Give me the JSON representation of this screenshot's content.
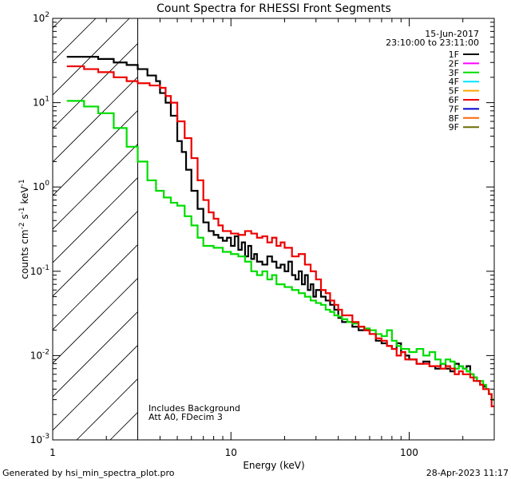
{
  "chart_data": {
    "type": "line",
    "title": "Count Spectra for RHESSI Front Segments",
    "xlabel": "Energy (keV)",
    "ylabel_main": "counts cm",
    "ylabel_exp1": "-2",
    "ylabel_mid": " s",
    "ylabel_exp2": "-1",
    "ylabel_tail": " keV",
    "ylabel_exp3": "-1",
    "x_scale": "log",
    "y_scale": "log",
    "xlim": [
      1,
      300
    ],
    "ylim": [
      0.001,
      100
    ],
    "x_ticks": [
      {
        "value": 1,
        "label": "1"
      },
      {
        "value": 10,
        "label": "10"
      },
      {
        "value": 100,
        "label": "100"
      }
    ],
    "y_ticks": [
      {
        "value": 0.001,
        "base": "10",
        "exp": "-3"
      },
      {
        "value": 0.01,
        "base": "10",
        "exp": "-2"
      },
      {
        "value": 0.1,
        "base": "10",
        "exp": "-1"
      },
      {
        "value": 1,
        "base": "10",
        "exp": "0"
      },
      {
        "value": 10,
        "base": "10",
        "exp": "1"
      },
      {
        "value": 100,
        "base": "10",
        "exp": "2"
      }
    ],
    "shaded_region": {
      "from": 1,
      "to": 3,
      "pattern": "diagonal-hatch"
    },
    "date": "15-Jun-2017",
    "time_range": "23:10:00 to 23:11:00",
    "legend": [
      {
        "label": "1F",
        "color": "#000000"
      },
      {
        "label": "2F",
        "color": "#ff00ff"
      },
      {
        "label": "3F",
        "color": "#00dd00"
      },
      {
        "label": "4F",
        "color": "#00e5ff"
      },
      {
        "label": "5F",
        "color": "#ffa500"
      },
      {
        "label": "6F",
        "color": "#ee0000"
      },
      {
        "label": "7F",
        "color": "#0000cc"
      },
      {
        "label": "8F",
        "color": "#ff6600"
      },
      {
        "label": "9F",
        "color": "#6b6b00"
      }
    ],
    "annotation_line1": "Includes Background",
    "annotation_line2": "Att A0, FDecim 3",
    "series": [
      {
        "name": "1F",
        "color": "#000000",
        "x": [
          1.2,
          1.6,
          1.8,
          2.2,
          2.6,
          3.0,
          3.4,
          3.8,
          4.0,
          4.3,
          4.6,
          5.0,
          5.3,
          5.6,
          6.0,
          6.5,
          7.0,
          7.5,
          8.0,
          8.5,
          9.0,
          9.5,
          10.0,
          10.5,
          11.0,
          11.5,
          12.0,
          12.5,
          13.0,
          13.5,
          14.0,
          15.0,
          16.0,
          17.0,
          18.0,
          19.0,
          20.0,
          21.0,
          22.0,
          23.0,
          24.0,
          25.0,
          26.0,
          27.0,
          28.0,
          29.0,
          30.0,
          32.0,
          34.0,
          36.0,
          38.0,
          40.0,
          42.0,
          45.0,
          48.0,
          52.0,
          56.0,
          60.0,
          65.0,
          70.0,
          75.0,
          80.0,
          85.0,
          90.0,
          95.0,
          100.0,
          110.0,
          120.0,
          130.0,
          140.0,
          150.0,
          160.0,
          170.0,
          180.0,
          190.0,
          200.0,
          210.0,
          220.0,
          230.0,
          240.0,
          250.0,
          260.0,
          270.0,
          280.0,
          290.0
        ],
        "y": [
          35,
          35,
          33,
          30,
          28,
          25,
          21,
          18,
          13,
          10,
          7,
          3.5,
          2.6,
          1.6,
          0.9,
          0.55,
          0.38,
          0.3,
          0.27,
          0.25,
          0.23,
          0.25,
          0.2,
          0.26,
          0.18,
          0.22,
          0.15,
          0.2,
          0.14,
          0.16,
          0.13,
          0.12,
          0.15,
          0.13,
          0.11,
          0.12,
          0.1,
          0.13,
          0.09,
          0.08,
          0.1,
          0.07,
          0.09,
          0.06,
          0.07,
          0.05,
          0.06,
          0.05,
          0.045,
          0.04,
          0.035,
          0.028,
          0.025,
          0.025,
          0.022,
          0.02,
          0.02,
          0.018,
          0.015,
          0.014,
          0.013,
          0.012,
          0.014,
          0.011,
          0.01,
          0.009,
          0.008,
          0.0085,
          0.0075,
          0.007,
          0.008,
          0.007,
          0.0065,
          0.008,
          0.0075,
          0.007,
          0.0075,
          0.006,
          0.0055,
          0.005,
          0.0045,
          0.0043,
          0.004,
          0.0035,
          0.003
        ]
      },
      {
        "name": "3F",
        "color": "#00dd00",
        "x": [
          1.2,
          1.5,
          1.8,
          2.2,
          2.6,
          3.0,
          3.4,
          3.8,
          4.2,
          4.6,
          5.0,
          5.5,
          6.0,
          6.5,
          7.0,
          7.5,
          8.0,
          9.0,
          10.0,
          11.0,
          12.0,
          13.0,
          14.0,
          15.0,
          16.0,
          17.0,
          18.0,
          20.0,
          22.0,
          24.0,
          26.0,
          28.0,
          30.0,
          32.0,
          34.0,
          36.0,
          38.0,
          40.0,
          42.0,
          45.0,
          48.0,
          52.0,
          56.0,
          60.0,
          65.0,
          70.0,
          75.0,
          80.0,
          85.0,
          90.0,
          95.0,
          100.0,
          110.0,
          120.0,
          130.0,
          140.0,
          150.0,
          160.0,
          170.0,
          180.0,
          190.0,
          200.0,
          210.0,
          220.0,
          230.0,
          240.0,
          250.0,
          260.0,
          270.0,
          280.0,
          290.0
        ],
        "y": [
          10.5,
          9,
          7.5,
          5,
          3,
          2,
          1.2,
          0.9,
          0.75,
          0.65,
          0.6,
          0.45,
          0.35,
          0.25,
          0.2,
          0.2,
          0.19,
          0.17,
          0.16,
          0.15,
          0.13,
          0.1,
          0.09,
          0.1,
          0.08,
          0.09,
          0.07,
          0.065,
          0.06,
          0.055,
          0.05,
          0.045,
          0.042,
          0.04,
          0.035,
          0.033,
          0.03,
          0.029,
          0.027,
          0.025,
          0.024,
          0.022,
          0.021,
          0.02,
          0.018,
          0.017,
          0.02,
          0.015,
          0.013,
          0.012,
          0.012,
          0.011,
          0.012,
          0.01,
          0.011,
          0.009,
          0.008,
          0.009,
          0.0085,
          0.007,
          0.0075,
          0.007,
          0.0065,
          0.006,
          0.0055,
          0.005,
          0.005,
          0.0045,
          0.004,
          0.0035,
          0.003
        ]
      },
      {
        "name": "6F",
        "color": "#ee0000",
        "x": [
          1.2,
          1.5,
          1.8,
          2.2,
          2.6,
          3.0,
          3.5,
          4.0,
          4.3,
          4.6,
          5.0,
          5.5,
          6.0,
          6.5,
          7.0,
          7.5,
          8.0,
          8.5,
          9.0,
          10.0,
          11.0,
          12.0,
          13.0,
          14.0,
          15.0,
          16.0,
          17.0,
          18.0,
          19.0,
          20.0,
          22.0,
          24.0,
          26.0,
          28.0,
          30.0,
          32.0,
          34.0,
          36.0,
          38.0,
          40.0,
          42.0,
          45.0,
          48.0,
          52.0,
          56.0,
          60.0,
          65.0,
          70.0,
          75.0,
          80.0,
          85.0,
          90.0,
          95.0,
          100.0,
          110.0,
          120.0,
          130.0,
          140.0,
          150.0,
          160.0,
          170.0,
          180.0,
          190.0,
          200.0,
          210.0,
          220.0,
          230.0,
          240.0,
          250.0,
          260.0,
          270.0,
          280.0,
          290.0
        ],
        "y": [
          27,
          25,
          23,
          20,
          18,
          17,
          16,
          15,
          12,
          10,
          6,
          3.8,
          2.2,
          1.2,
          0.7,
          0.5,
          0.42,
          0.35,
          0.3,
          0.28,
          0.27,
          0.3,
          0.28,
          0.25,
          0.26,
          0.22,
          0.25,
          0.2,
          0.22,
          0.19,
          0.15,
          0.16,
          0.12,
          0.1,
          0.08,
          0.06,
          0.055,
          0.045,
          0.04,
          0.035,
          0.03,
          0.03,
          0.025,
          0.022,
          0.02,
          0.018,
          0.016,
          0.015,
          0.013,
          0.012,
          0.01,
          0.011,
          0.009,
          0.009,
          0.008,
          0.008,
          0.0075,
          0.0075,
          0.007,
          0.0075,
          0.007,
          0.006,
          0.0065,
          0.006,
          0.006,
          0.0055,
          0.005,
          0.005,
          0.0045,
          0.004,
          0.004,
          0.0035,
          0.0025
        ]
      }
    ]
  },
  "footer": {
    "generated_by": "Generated by hsi_min_spectra_plot.pro",
    "timestamp": "28-Apr-2023 11:17"
  }
}
